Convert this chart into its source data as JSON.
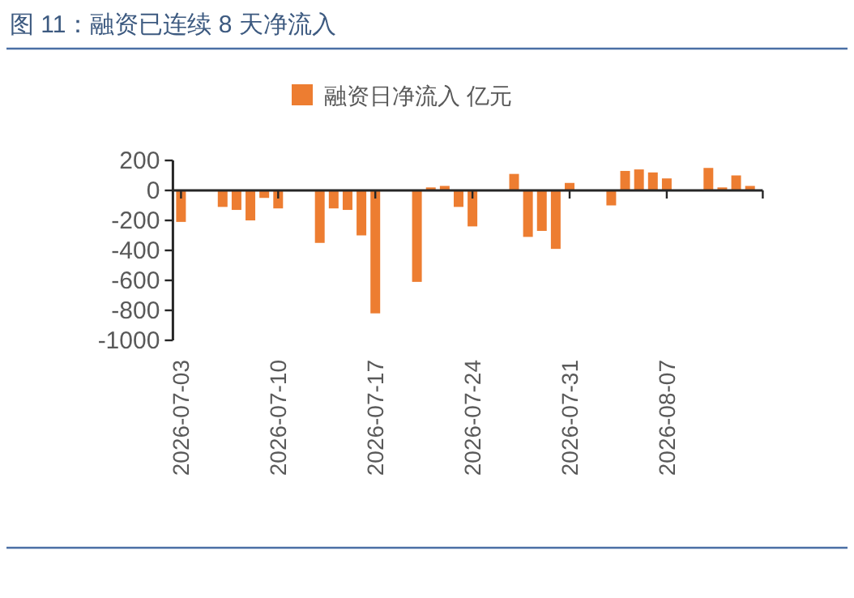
{
  "chart_data": {
    "type": "bar",
    "title": "图 11：融资已连续 8 天净流入",
    "x": [
      "2026-07-03",
      "2026-07-06",
      "2026-07-07",
      "2026-07-08",
      "2026-07-09",
      "2026-07-10",
      "2026-07-13",
      "2026-07-14",
      "2026-07-15",
      "2026-07-16",
      "2026-07-17",
      "2026-07-20",
      "2026-07-21",
      "2026-07-22",
      "2026-07-23",
      "2026-07-24",
      "2026-07-27",
      "2026-07-28",
      "2026-07-29",
      "2026-07-30",
      "2026-07-31",
      "2026-08-03",
      "2026-08-04",
      "2026-08-05",
      "2026-08-06",
      "2026-08-07",
      "2026-08-10",
      "2026-08-11",
      "2026-08-12",
      "2026-08-13"
    ],
    "series": [
      {
        "name": "融资日净流入 亿元",
        "color": "#ed7d31",
        "values": [
          -210,
          -110,
          -130,
          -200,
          -50,
          -120,
          -350,
          -120,
          -130,
          -300,
          -820,
          -610,
          20,
          30,
          -110,
          -240,
          110,
          -310,
          -270,
          -390,
          50,
          -100,
          130,
          140,
          120,
          80,
          150,
          20,
          100,
          30
        ]
      }
    ],
    "xlim": [
      "2026-07-02T10:00",
      "2026-08-13T22:00"
    ],
    "xticks": [
      "2026-07-03",
      "2026-07-10",
      "2026-07-17",
      "2026-07-24",
      "2026-07-31",
      "2026-08-07"
    ],
    "ylim": [
      -1000,
      200
    ],
    "yticks": [
      -1000,
      -800,
      -600,
      -400,
      -200,
      0,
      200
    ],
    "legend": "top"
  }
}
